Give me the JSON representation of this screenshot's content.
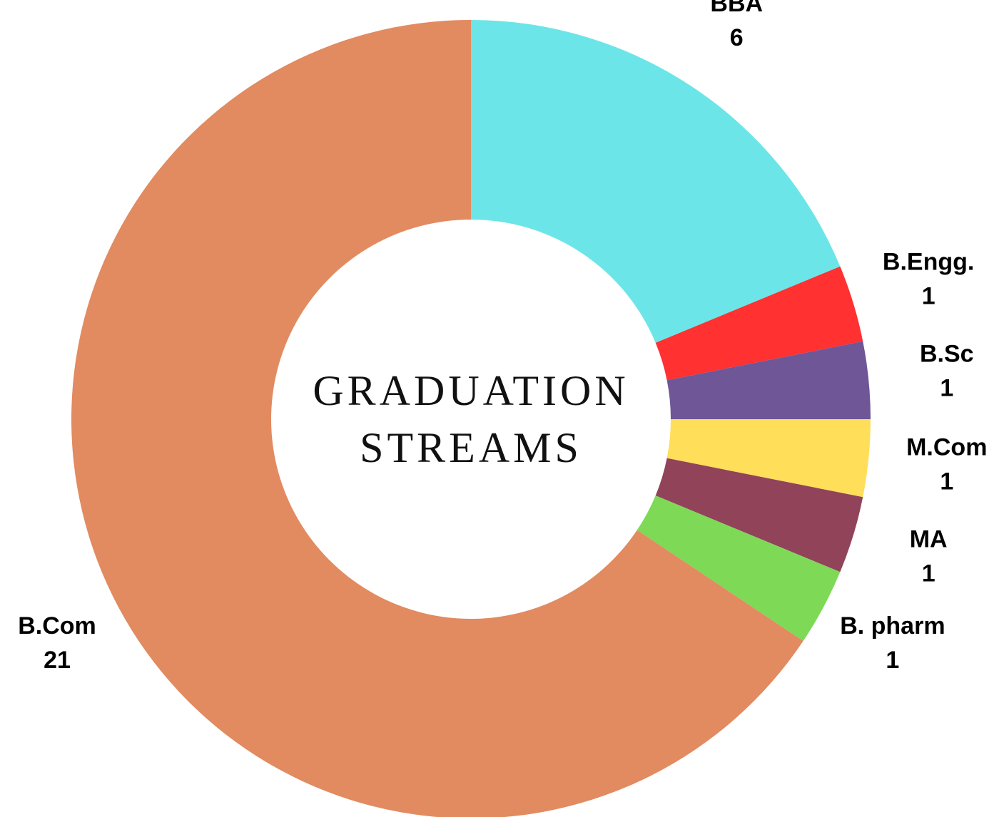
{
  "chart_data": {
    "type": "donut",
    "title": "GRADUATION STREAMS",
    "categories": [
      "BBA",
      "B.Engg.",
      "B.Sc",
      "M.Com",
      "MA",
      "B. pharm",
      "B.Com"
    ],
    "values": [
      6,
      1,
      1,
      1,
      1,
      1,
      21
    ],
    "colors": [
      "#6ce5e8",
      "#ff3131",
      "#6e5697",
      "#ffde59",
      "#91435a",
      "#7ed957",
      "#e28a60"
    ]
  }
}
